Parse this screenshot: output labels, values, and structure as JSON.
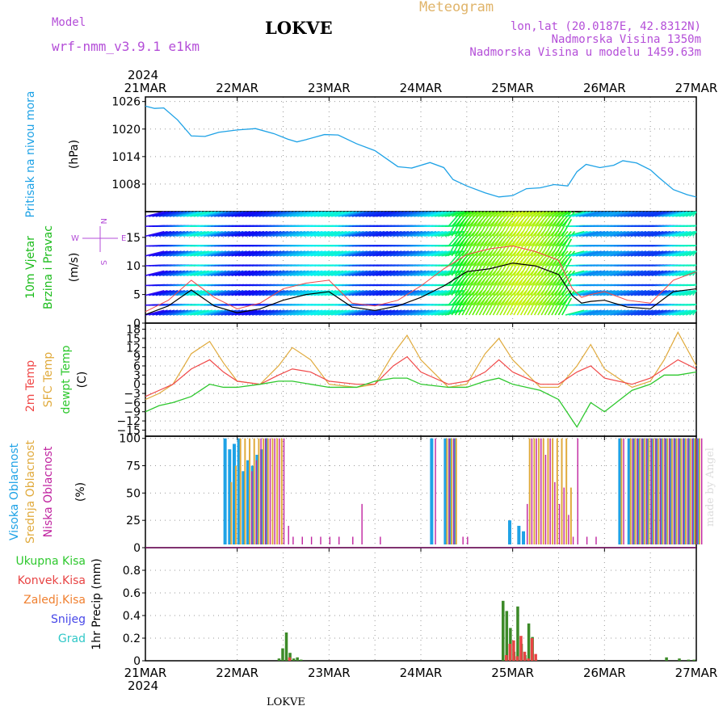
{
  "header": {
    "model_label": "Model",
    "model_name": "wrf-nmm_v3.9.1  e1km",
    "title": "LOKVE",
    "meteogram_label": "Meteogram",
    "coords": "lon,lat (20.0187E, 42.8312N)",
    "altitude": "Nadmorska Visina 1350m",
    "model_altitude": "Nadmorska Visina u modelu 1459.63m",
    "footer_station": "LOKVE",
    "credit": "made by Angel"
  },
  "time_axis": {
    "year_top": "2024",
    "year_bottom": "2024",
    "ticks": [
      "21MAR",
      "22MAR",
      "23MAR",
      "24MAR",
      "25MAR",
      "26MAR",
      "27MAR"
    ]
  },
  "colors": {
    "pressure": "#1ea2e6",
    "temp2m": "#f04848",
    "sfc_temp": "#e0aa3c",
    "dewpoint": "#2ec82e",
    "high_cloud": "#1ea2e6",
    "mid_cloud": "#e0aa3c",
    "low_cloud": "#c024a0",
    "total_precip": "#3c8a28",
    "conv_precip": "#e84444",
    "frozen_precip": "#f08030",
    "snow": "#4848e8",
    "hail": "#30c8c8",
    "wind_speed": "#000000",
    "wind_gust": "#f04848"
  },
  "chart_data": [
    {
      "id": "pressure",
      "type": "line",
      "ylabel": "Pritisak na nivou mora",
      "unit": "(hPa)",
      "ylim": [
        1002,
        1027
      ],
      "yticks": [
        1008,
        1014,
        1020,
        1026
      ],
      "x_days": [
        0,
        0.1,
        0.2,
        0.35,
        0.5,
        0.65,
        0.8,
        1.0,
        1.2,
        1.4,
        1.55,
        1.65,
        1.75,
        1.95,
        2.1,
        2.3,
        2.5,
        2.75,
        2.9,
        3.1,
        3.25,
        3.35,
        3.5,
        3.7,
        3.85,
        4.0,
        4.15,
        4.3,
        4.45,
        4.6,
        4.7,
        4.8,
        4.95,
        5.1,
        5.2,
        5.35,
        5.5,
        5.6,
        5.75,
        5.9,
        6.0
      ],
      "series": [
        {
          "values": [
            1025.0,
            1024.5,
            1024.6,
            1022.0,
            1018.5,
            1018.4,
            1019.3,
            1019.8,
            1020.1,
            1019.0,
            1017.8,
            1017.2,
            1017.7,
            1018.8,
            1018.7,
            1016.8,
            1015.3,
            1011.8,
            1011.5,
            1012.7,
            1011.6,
            1009.0,
            1007.6,
            1006.1,
            1005.2,
            1005.5,
            1007.0,
            1007.2,
            1007.9,
            1007.6,
            1010.7,
            1012.3,
            1011.6,
            1012.1,
            1013.1,
            1012.6,
            1011.1,
            1009.3,
            1006.8,
            1005.7,
            1005.2
          ]
        }
      ]
    },
    {
      "id": "wind",
      "type": "line",
      "ylabel": "10m Vjetar Brzina i Pravac",
      "unit": "(m/s)",
      "compass": {
        "n": "N",
        "s": "S",
        "w": "W",
        "e": "E"
      },
      "ylim": [
        0,
        19.5
      ],
      "yticks": [
        0,
        5,
        10,
        15
      ],
      "x_days": [
        0,
        0.25,
        0.5,
        0.75,
        1.0,
        1.25,
        1.5,
        1.75,
        2.0,
        2.25,
        2.5,
        2.75,
        3.0,
        3.25,
        3.5,
        3.75,
        4.0,
        4.25,
        4.5,
        4.65,
        4.75,
        4.85,
        5.0,
        5.25,
        5.5,
        5.75,
        6.0
      ],
      "series": [
        {
          "name": "speed",
          "values": [
            1.5,
            3.0,
            5.8,
            3.0,
            1.8,
            2.5,
            4.0,
            5.0,
            5.5,
            2.8,
            2.2,
            3.0,
            4.5,
            6.5,
            9.0,
            9.5,
            10.5,
            10.0,
            8.5,
            4.8,
            3.5,
            3.8,
            4.0,
            2.8,
            2.5,
            5.5,
            6.0
          ]
        },
        {
          "name": "gust",
          "values": [
            2.0,
            4.0,
            7.5,
            4.5,
            2.5,
            3.5,
            6.0,
            7.0,
            7.5,
            3.5,
            3.0,
            4.0,
            6.5,
            9.5,
            12.0,
            13.0,
            13.5,
            12.5,
            11.0,
            6.0,
            4.5,
            5.0,
            5.5,
            4.0,
            3.5,
            7.5,
            9.0
          ]
        }
      ]
    },
    {
      "id": "temperature",
      "type": "line",
      "ylabel": "2m Temp",
      "ylabel2": "SFC Temp",
      "ylabel3": "dewpt Temp",
      "unit": "(C)",
      "ylim": [
        -17,
        20
      ],
      "yticks": [
        -15,
        -12,
        -9,
        -6,
        -3,
        0,
        3,
        6,
        9,
        12,
        15,
        18
      ],
      "x_days": [
        0,
        0.15,
        0.3,
        0.5,
        0.7,
        0.85,
        1.0,
        1.25,
        1.45,
        1.6,
        1.8,
        2.0,
        2.3,
        2.5,
        2.7,
        2.85,
        3.0,
        3.3,
        3.5,
        3.7,
        3.85,
        4.0,
        4.3,
        4.5,
        4.7,
        4.85,
        5.0,
        5.3,
        5.5,
        5.65,
        5.8,
        6.0
      ],
      "series": [
        {
          "name": "2m Temp",
          "values": [
            -4,
            -2,
            0,
            5,
            8,
            4,
            1,
            0,
            3,
            5,
            4,
            1,
            0,
            0,
            6,
            9,
            4,
            0,
            1,
            4,
            8,
            4,
            0,
            0,
            4,
            6,
            2,
            0,
            2,
            5,
            8,
            5
          ]
        },
        {
          "name": "SFC Temp",
          "values": [
            -5,
            -3,
            0,
            10,
            14,
            7,
            1,
            0,
            6,
            12,
            8,
            0,
            -1,
            0,
            10,
            16,
            8,
            -1,
            0,
            10,
            15,
            8,
            -1,
            -1,
            6,
            13,
            5,
            -1,
            1,
            8,
            17,
            6
          ]
        },
        {
          "name": "dewpt Temp",
          "values": [
            -9,
            -7,
            -6,
            -4,
            0,
            -1,
            -1,
            0,
            1,
            1,
            0,
            -1,
            -1,
            1,
            2,
            2,
            0,
            -1,
            -1,
            1,
            2,
            0,
            -2,
            -5,
            -14,
            -6,
            -9,
            -2,
            0,
            3,
            3,
            4
          ]
        }
      ]
    },
    {
      "id": "cloud",
      "type": "bar",
      "ylabel": "Visoka Oblacnost",
      "ylabel2": "Srednja Oblacnost",
      "ylabel3": "Niska Oblacnost",
      "unit": "(%)",
      "ylim": [
        0,
        102
      ],
      "yticks": [
        0,
        25,
        50,
        75,
        100
      ],
      "x_days": [
        0.85,
        0.9,
        0.95,
        1.0,
        1.05,
        1.1,
        1.15,
        1.2,
        1.25,
        1.3,
        1.35,
        1.4,
        1.45,
        1.5,
        1.55,
        1.65,
        1.75,
        1.85,
        1.95,
        2.05,
        2.2,
        2.3,
        2.5,
        3.1,
        3.25,
        3.3,
        3.35,
        3.4,
        3.45,
        3.55,
        3.6,
        3.7,
        3.85,
        3.95,
        4.05,
        4.1,
        4.15,
        4.2,
        4.25,
        4.3,
        4.35,
        4.4,
        4.45,
        4.5,
        4.55,
        4.6,
        4.65,
        4.75,
        4.85,
        5.15,
        5.25,
        5.3,
        5.35,
        5.4,
        5.45,
        5.5,
        5.55,
        5.6,
        5.65,
        5.7,
        5.75,
        5.8,
        5.85,
        5.9,
        5.95,
        6.0
      ],
      "series": [
        {
          "name": "Visoka Oblacnost",
          "values": [
            100,
            90,
            95,
            100,
            70,
            80,
            75,
            85,
            90,
            100,
            0,
            0,
            0,
            0,
            0,
            0,
            0,
            0,
            0,
            0,
            0,
            0,
            0,
            100,
            100,
            100,
            100,
            0,
            0,
            0,
            0,
            0,
            0,
            25,
            20,
            15,
            0,
            0,
            0,
            0,
            0,
            0,
            0,
            0,
            0,
            0,
            0,
            0,
            0,
            100,
            100,
            100,
            100,
            100,
            100,
            100,
            100,
            100,
            100,
            100,
            100,
            100,
            100,
            100,
            100,
            100
          ]
        },
        {
          "name": "Srednja Oblacnost",
          "values": [
            0,
            60,
            75,
            100,
            100,
            100,
            100,
            100,
            100,
            100,
            100,
            100,
            100,
            0,
            0,
            0,
            0,
            0,
            0,
            0,
            0,
            0,
            0,
            0,
            100,
            100,
            100,
            0,
            0,
            0,
            0,
            0,
            0,
            0,
            0,
            0,
            100,
            100,
            100,
            100,
            100,
            100,
            100,
            100,
            100,
            55,
            0,
            0,
            0,
            100,
            100,
            100,
            100,
            100,
            100,
            100,
            100,
            100,
            100,
            100,
            100,
            100,
            100,
            100,
            100,
            100
          ]
        },
        {
          "name": "Niska Oblacnost",
          "values": [
            0,
            0,
            0,
            0,
            0,
            70,
            80,
            100,
            100,
            100,
            100,
            100,
            100,
            20,
            10,
            10,
            10,
            10,
            10,
            10,
            10,
            40,
            10,
            100,
            100,
            100,
            0,
            10,
            10,
            0,
            0,
            0,
            0,
            0,
            0,
            40,
            100,
            100,
            100,
            85,
            100,
            60,
            40,
            55,
            30,
            10,
            100,
            10,
            10,
            100,
            100,
            100,
            100,
            100,
            100,
            100,
            100,
            100,
            100,
            100,
            100,
            100,
            100,
            100,
            100,
            100
          ]
        }
      ]
    },
    {
      "id": "precip",
      "type": "bar",
      "ylabel": "1hr Precip",
      "unit": "(mm)",
      "legend": [
        "Ukupna Kisa",
        "Konvek.Kisa",
        "Zaledj.Kisa",
        "Snijeg",
        "Grad"
      ],
      "ylim": [
        0,
        1.0
      ],
      "yticks": [
        0,
        0.2,
        0.4,
        0.6,
        0.8
      ],
      "x_days": [
        1.44,
        1.48,
        1.52,
        1.56,
        1.6,
        1.64,
        1.68,
        3.88,
        3.92,
        3.96,
        4.0,
        4.04,
        4.08,
        4.12,
        4.16,
        4.2,
        4.24,
        4.28,
        5.66,
        5.8,
        5.9,
        5.96
      ],
      "series": [
        {
          "name": "Ukupna Kisa",
          "values": [
            0.02,
            0.11,
            0.25,
            0.07,
            0.02,
            0.03,
            0.01,
            0.53,
            0.44,
            0.29,
            0.08,
            0.48,
            0.15,
            0.05,
            0.33,
            0.21,
            0.01,
            0.0,
            0.03,
            0.02,
            0.01,
            0.01
          ]
        },
        {
          "name": "Konvek.Kisa",
          "values": [
            0.0,
            0.0,
            0.03,
            0.0,
            0.0,
            0.0,
            0.0,
            0.05,
            0.15,
            0.18,
            0.04,
            0.22,
            0.08,
            0.02,
            0.2,
            0.06,
            0.0,
            0.0,
            0.0,
            0.0,
            0.0,
            0.0
          ]
        }
      ]
    }
  ]
}
